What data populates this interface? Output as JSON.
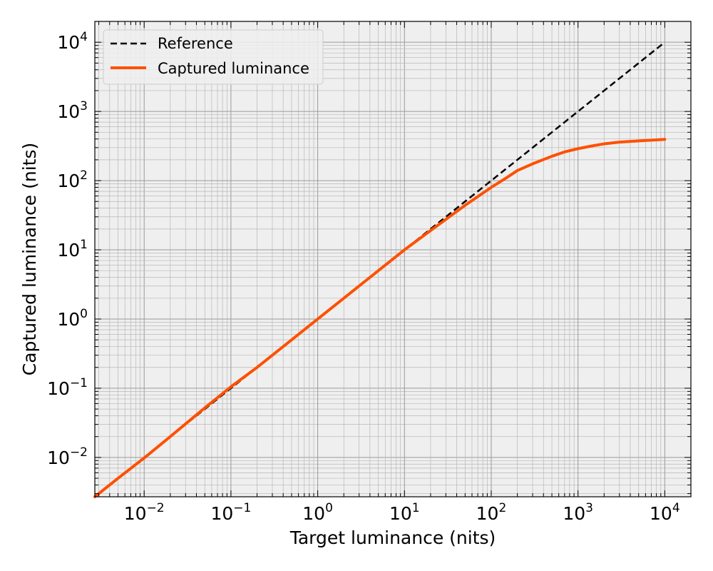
{
  "chart_data": {
    "type": "line",
    "xlabel": "Target luminance (nits)",
    "ylabel": "Captured luminance (nits)",
    "xscale": "log",
    "yscale": "log",
    "xlim": [
      0.0027,
      20000
    ],
    "ylim": [
      0.0027,
      20000
    ],
    "grid": "major and minor",
    "background": "#efefef",
    "legend_position": "top-left",
    "xticks": [
      {
        "base": "10",
        "exp": "−2",
        "value": 0.01
      },
      {
        "base": "10",
        "exp": "−1",
        "value": 0.1
      },
      {
        "base": "10",
        "exp": "0",
        "value": 1
      },
      {
        "base": "10",
        "exp": "1",
        "value": 10
      },
      {
        "base": "10",
        "exp": "2",
        "value": 100
      },
      {
        "base": "10",
        "exp": "3",
        "value": 1000
      },
      {
        "base": "10",
        "exp": "4",
        "value": 10000
      }
    ],
    "yticks": [
      {
        "base": "10",
        "exp": "−2",
        "value": 0.01
      },
      {
        "base": "10",
        "exp": "−1",
        "value": 0.1
      },
      {
        "base": "10",
        "exp": "0",
        "value": 1
      },
      {
        "base": "10",
        "exp": "1",
        "value": 10
      },
      {
        "base": "10",
        "exp": "2",
        "value": 100
      },
      {
        "base": "10",
        "exp": "3",
        "value": 1000
      },
      {
        "base": "10",
        "exp": "4",
        "value": 10000
      }
    ],
    "series": [
      {
        "name": "Reference",
        "color": "#000000",
        "style": "dashed",
        "x": [
          0.0027,
          10000
        ],
        "y": [
          0.0027,
          10000
        ]
      },
      {
        "name": "Captured luminance",
        "color": "#ff5000",
        "style": "solid",
        "x": [
          0.0027,
          0.005,
          0.01,
          0.02,
          0.05,
          0.1,
          0.2,
          0.5,
          1,
          2,
          5,
          10,
          20,
          50,
          100,
          150,
          200,
          300,
          500,
          700,
          1000,
          1500,
          2000,
          3000,
          5000,
          7000,
          10000
        ],
        "y": [
          0.0027,
          0.005,
          0.0098,
          0.02,
          0.052,
          0.105,
          0.2,
          0.5,
          1.0,
          2.0,
          5.0,
          10.0,
          19.0,
          44.0,
          80.0,
          110.0,
          140.0,
          175.0,
          225.0,
          260.0,
          290.0,
          320.0,
          340.0,
          360.0,
          375.0,
          385.0,
          395.0
        ]
      }
    ]
  }
}
